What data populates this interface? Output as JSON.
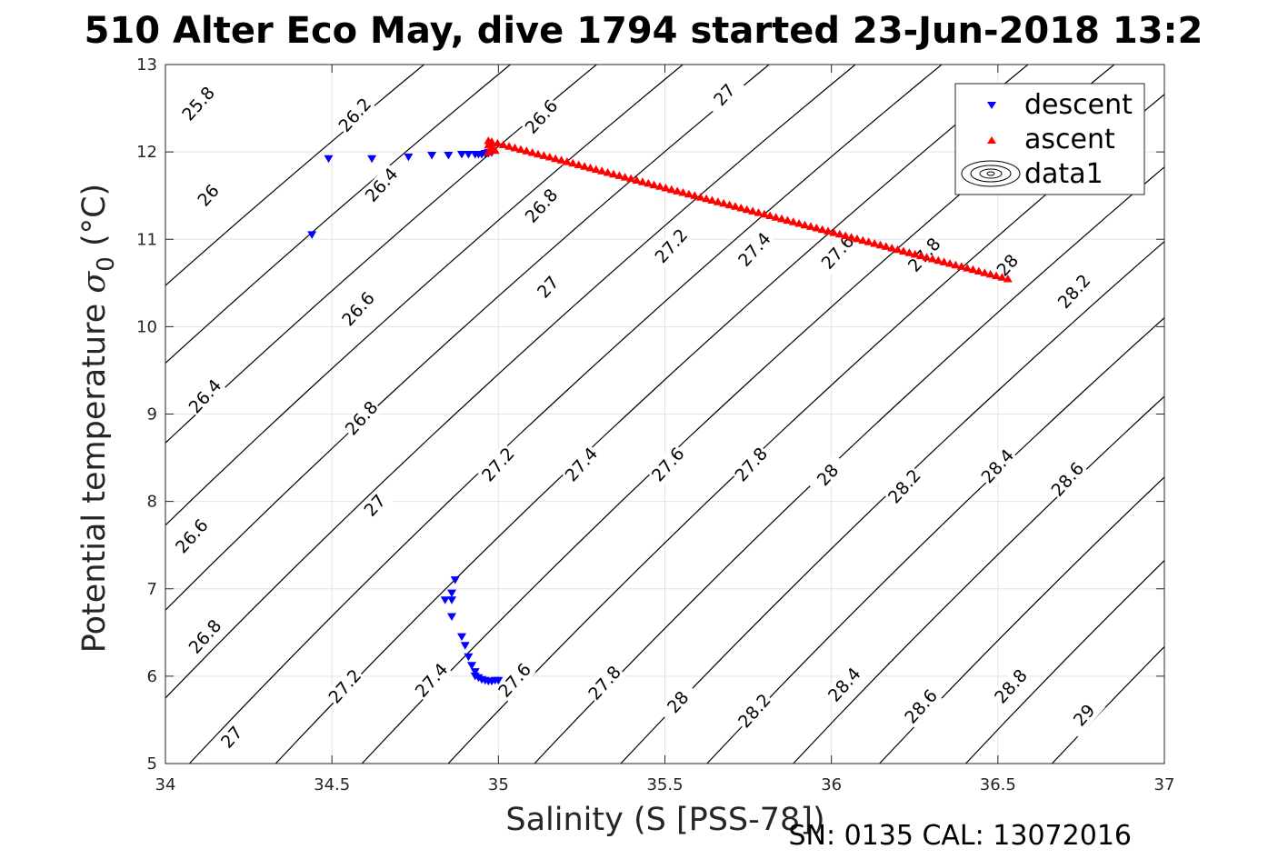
{
  "chart_data": {
    "type": "scatter",
    "title": "510 Alter Eco May, dive 1794 started 23-Jun-2018 13:2",
    "xlabel": "Salinity (S [PSS-78])",
    "ylabel": "Potential temperature σ₀ (°C)",
    "ylabel_main": "Potential temperature ",
    "ylabel_sigma": "σ",
    "ylabel_sub": "0",
    "ylabel_units": " (°C)",
    "xlim": [
      34,
      37
    ],
    "ylim": [
      5,
      13
    ],
    "xticks": [
      "34",
      "34.5",
      "35",
      "35.5",
      "36",
      "36.5",
      "37"
    ],
    "yticks": [
      "5",
      "6",
      "7",
      "8",
      "9",
      "10",
      "11",
      "12",
      "13"
    ],
    "grid": true,
    "legend_position": "top-right",
    "legend": [
      {
        "label": "descent",
        "marker": "triangle-down",
        "color": "#0000ff"
      },
      {
        "label": "ascent",
        "marker": "triangle-up",
        "color": "#ff0000"
      },
      {
        "label": "data1",
        "marker": "contour",
        "color": "#000000"
      }
    ],
    "footer": "SN: 0135  CAL: 13072016",
    "series": [
      {
        "name": "descent",
        "color": "#0000ff",
        "marker": "triangle-down",
        "points": [
          [
            34.44,
            11.05
          ],
          [
            34.49,
            11.92
          ],
          [
            34.62,
            11.92
          ],
          [
            34.73,
            11.94
          ],
          [
            34.8,
            11.96
          ],
          [
            34.85,
            11.96
          ],
          [
            34.89,
            11.97
          ],
          [
            34.91,
            11.97
          ],
          [
            34.93,
            11.97
          ],
          [
            34.94,
            11.97
          ],
          [
            34.95,
            11.97
          ],
          [
            34.96,
            11.98
          ],
          [
            34.97,
            11.98
          ],
          [
            34.97,
            11.99
          ],
          [
            34.98,
            11.99
          ],
          [
            34.87,
            7.1
          ],
          [
            34.86,
            6.95
          ],
          [
            34.86,
            6.87
          ],
          [
            34.84,
            6.87
          ],
          [
            34.86,
            6.68
          ],
          [
            34.89,
            6.45
          ],
          [
            34.9,
            6.35
          ],
          [
            34.91,
            6.22
          ],
          [
            34.92,
            6.12
          ],
          [
            34.93,
            6.05
          ],
          [
            34.93,
            6.0
          ],
          [
            34.94,
            5.98
          ],
          [
            34.95,
            5.96
          ],
          [
            34.96,
            5.95
          ],
          [
            34.97,
            5.94
          ],
          [
            34.98,
            5.94
          ],
          [
            34.99,
            5.95
          ],
          [
            35.0,
            5.95
          ]
        ]
      },
      {
        "name": "ascent",
        "color": "#ff0000",
        "marker": "triangle-up",
        "start": [
          34.98,
          12.12
        ],
        "end": [
          36.53,
          10.55
        ],
        "count": 90,
        "cluster": [
          [
            34.97,
            12.13
          ],
          [
            34.97,
            12.08
          ],
          [
            34.98,
            12.03
          ],
          [
            34.97,
            12.0
          ],
          [
            34.98,
            12.06
          ],
          [
            34.99,
            12.02
          ]
        ]
      }
    ],
    "contour_levels": [
      25.8,
      26,
      26.2,
      26.4,
      26.6,
      26.8,
      27,
      27.2,
      27.4,
      27.6,
      27.8,
      28,
      28.2,
      28.4,
      28.6,
      28.8,
      29
    ],
    "contour_labels": [
      {
        "text": "25.8",
        "s": 34.1,
        "t": 12.55
      },
      {
        "text": "26",
        "s": 34.13,
        "t": 11.5
      },
      {
        "text": "26.2",
        "s": 34.57,
        "t": 12.42
      },
      {
        "text": "26.4",
        "s": 34.65,
        "t": 11.62
      },
      {
        "text": "26.6",
        "s": 35.13,
        "t": 12.4
      },
      {
        "text": "26.8",
        "s": 35.13,
        "t": 11.38
      },
      {
        "text": "27",
        "s": 35.68,
        "t": 12.65
      },
      {
        "text": "27.2",
        "s": 35.52,
        "t": 10.92
      },
      {
        "text": "27.4",
        "s": 35.77,
        "t": 10.88
      },
      {
        "text": "27.6",
        "s": 36.02,
        "t": 10.85
      },
      {
        "text": "27.8",
        "s": 36.28,
        "t": 10.82
      },
      {
        "text": "28",
        "s": 36.53,
        "t": 10.7
      },
      {
        "text": "28.2",
        "s": 36.73,
        "t": 10.4
      },
      {
        "text": "26.4",
        "s": 34.12,
        "t": 9.2
      },
      {
        "text": "26.6",
        "s": 34.58,
        "t": 10.2
      },
      {
        "text": "26.8",
        "s": 34.59,
        "t": 8.95
      },
      {
        "text": "27",
        "s": 35.15,
        "t": 10.45
      },
      {
        "text": "26.6",
        "s": 34.08,
        "t": 7.6
      },
      {
        "text": "27",
        "s": 34.63,
        "t": 7.95
      },
      {
        "text": "27.2",
        "s": 35.0,
        "t": 8.42
      },
      {
        "text": "27.4",
        "s": 35.25,
        "t": 8.42
      },
      {
        "text": "27.6",
        "s": 35.51,
        "t": 8.42
      },
      {
        "text": "27.8",
        "s": 35.76,
        "t": 8.42
      },
      {
        "text": "28",
        "s": 35.99,
        "t": 8.3
      },
      {
        "text": "28.2",
        "s": 36.22,
        "t": 8.17
      },
      {
        "text": "28.4",
        "s": 36.5,
        "t": 8.4
      },
      {
        "text": "28.6",
        "s": 36.71,
        "t": 8.25
      },
      {
        "text": "26.8",
        "s": 34.12,
        "t": 6.45
      },
      {
        "text": "27",
        "s": 34.2,
        "t": 5.3
      },
      {
        "text": "27.2",
        "s": 34.54,
        "t": 5.88
      },
      {
        "text": "27.4",
        "s": 34.8,
        "t": 5.95
      },
      {
        "text": "27.6",
        "s": 35.05,
        "t": 5.95
      },
      {
        "text": "27.8",
        "s": 35.32,
        "t": 5.92
      },
      {
        "text": "28",
        "s": 35.54,
        "t": 5.7
      },
      {
        "text": "28.2",
        "s": 35.77,
        "t": 5.6
      },
      {
        "text": "28.4",
        "s": 36.04,
        "t": 5.9
      },
      {
        "text": "28.6",
        "s": 36.27,
        "t": 5.65
      },
      {
        "text": "28.8",
        "s": 36.54,
        "t": 5.88
      },
      {
        "text": "29",
        "s": 36.76,
        "t": 5.55
      }
    ]
  }
}
